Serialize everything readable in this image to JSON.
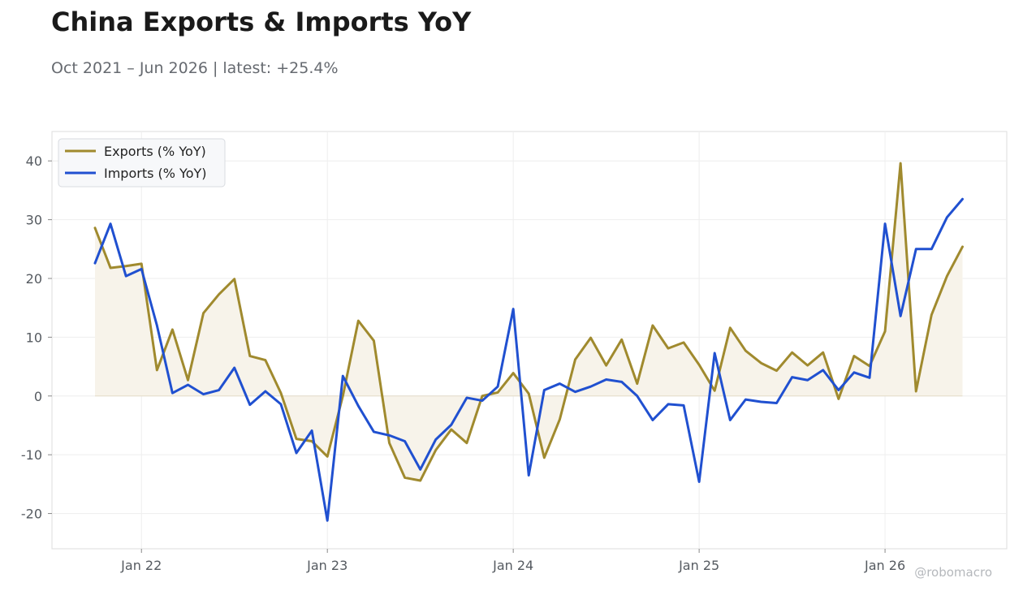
{
  "title": "China Exports & Imports YoY",
  "subtitle": "Oct 2021 – Jun 2026 | latest: +25.4%",
  "watermark": "@robomacro",
  "colors": {
    "exports": "#A08A2E",
    "imports": "#2050D0",
    "fill": "#F7F3EA",
    "grid": "#EEEEEE",
    "axis": "#DDDDDD"
  },
  "chart_data": {
    "type": "line",
    "title": "China Exports & Imports YoY",
    "xlabel": "",
    "ylabel": "",
    "x_start": "2021-10",
    "ylim": [
      -26,
      45
    ],
    "yticks": [
      40,
      30,
      20,
      10,
      0,
      -10,
      -20
    ],
    "xticks": [
      {
        "label": "Jan 22",
        "date": "2022-01"
      },
      {
        "label": "Jan 23",
        "date": "2023-01"
      },
      {
        "label": "Jan 24",
        "date": "2024-01"
      },
      {
        "label": "Jan 25",
        "date": "2025-01"
      },
      {
        "label": "Jan 26",
        "date": "2026-01"
      }
    ],
    "grid": true,
    "legend_position": "top-left",
    "series": [
      {
        "name": "Exports (% YoY)",
        "values": [
          28.6,
          21.8,
          22.1,
          22.5,
          4.4,
          11.3,
          2.7,
          14.1,
          17.3,
          19.9,
          6.8,
          6.1,
          0.5,
          -7.3,
          -7.7,
          -10.3,
          0.0,
          12.8,
          9.4,
          -8.0,
          -13.9,
          -14.4,
          -9.2,
          -5.7,
          -8.0,
          0.0,
          0.6,
          3.9,
          0.4,
          -10.5,
          -4.0,
          6.2,
          9.9,
          5.2,
          9.6,
          2.1,
          12.0,
          8.1,
          9.1,
          5.3,
          0.9,
          11.6,
          7.7,
          5.6,
          4.3,
          7.4,
          5.2,
          7.4,
          -0.5,
          6.8,
          5.1,
          11.0,
          39.6,
          0.8,
          13.8,
          20.4,
          25.4
        ]
      },
      {
        "name": "Imports (% YoY)",
        "values": [
          22.6,
          29.3,
          20.4,
          21.6,
          12.0,
          0.5,
          1.9,
          0.3,
          1.0,
          4.8,
          -1.5,
          0.8,
          -1.4,
          -9.7,
          -5.9,
          -21.2,
          3.4,
          -1.7,
          -6.1,
          -6.7,
          -7.7,
          -12.5,
          -7.4,
          -4.9,
          -0.3,
          -0.8,
          1.6,
          14.8,
          -13.5,
          1.0,
          2.1,
          0.7,
          1.6,
          2.8,
          2.4,
          0.0,
          -4.1,
          -1.4,
          -1.6,
          -14.6,
          7.3,
          -4.1,
          -0.6,
          -1.0,
          -1.2,
          3.2,
          2.7,
          4.4,
          1.0,
          4.0,
          3.1,
          29.3,
          13.6,
          25.0,
          25.0,
          30.4,
          33.5
        ]
      }
    ]
  }
}
